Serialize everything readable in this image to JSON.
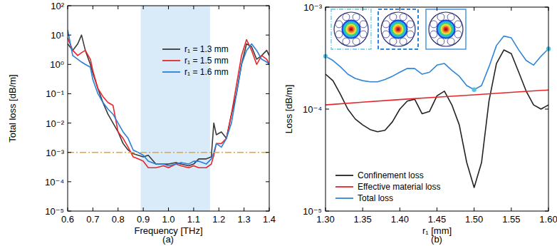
{
  "chart_data": [
    {
      "type": "line",
      "caption": "(a)",
      "x_label": "Frequency [THz]",
      "y_label": "Total loss [dB/m]",
      "log": "y",
      "grid": false,
      "legend": "upper right",
      "xlim": [
        0.6,
        1.4
      ],
      "ylim": [
        1e-05,
        100
      ],
      "xticks": [
        0.6,
        0.7,
        0.8,
        0.9,
        {
          "value": 1,
          "label": "1.0"
        },
        1.1,
        1.2,
        1.3,
        1.4
      ],
      "yticks": [
        {
          "value": 1e-05,
          "label": "10⁻⁵"
        },
        {
          "value": 0.0001,
          "label": "10⁻⁴"
        },
        {
          "value": 0.001,
          "label": "10⁻³"
        },
        {
          "value": 0.01,
          "label": "10⁻²"
        },
        {
          "value": 0.1,
          "label": "10⁻¹"
        },
        {
          "value": 1,
          "label": "10⁰"
        },
        {
          "value": 10,
          "label": "10¹"
        },
        {
          "value": 100,
          "label": "10²"
        }
      ],
      "shaded_region": [
        0.89,
        1.165
      ],
      "reference_line": 0.001,
      "x": [
        0.6,
        0.62,
        0.64,
        0.655,
        0.67,
        0.69,
        0.7,
        0.72,
        0.74,
        0.76,
        0.78,
        0.8,
        0.82,
        0.84,
        0.86,
        0.88,
        0.9,
        0.92,
        0.95,
        0.98,
        1.0,
        1.03,
        1.05,
        1.08,
        1.1,
        1.12,
        1.15,
        1.17,
        1.18,
        1.19,
        1.21,
        1.23,
        1.25,
        1.27,
        1.29,
        1.31,
        1.33,
        1.35,
        1.37,
        1.39,
        1.4
      ],
      "series": [
        {
          "name": "r₁ = 1.3 mm",
          "color": "#3a3a3a",
          "values": [
            5,
            3,
            5,
            10,
            3,
            1,
            0.5,
            0.15,
            0.05,
            0.02,
            0.01,
            0.005,
            0.002,
            0.0012,
            0.0009,
            0.0008,
            0.0007,
            0.0008,
            0.0004,
            0.0004,
            0.0004,
            0.00045,
            0.0004,
            0.00035,
            0.0004,
            0.0006,
            0.0006,
            0.0007,
            0.01,
            0.004,
            0.005,
            0.003,
            0.02,
            0.1,
            1,
            5,
            4,
            1.5,
            2,
            3,
            2
          ]
        },
        {
          "name": "r₁ = 1.5 mm",
          "color": "#e8262c",
          "values": [
            8,
            3,
            2,
            2.5,
            3,
            1.5,
            0.6,
            0.15,
            0.08,
            0.05,
            0.04,
            0.005,
            0.003,
            0.0015,
            0.0007,
            0.0006,
            0.0005,
            0.0003,
            0.0003,
            0.00035,
            0.0003,
            0.0004,
            0.00035,
            0.0003,
            0.00035,
            0.0003,
            0.0003,
            0.0004,
            0.0008,
            0.002,
            0.002,
            0.003,
            0.02,
            0.2,
            2,
            7,
            3,
            1,
            2,
            1.5,
            1
          ]
        },
        {
          "name": "r₁ = 1.6 mm",
          "color": "#2b7fd6",
          "values": [
            15,
            2,
            1.5,
            1.2,
            1,
            0.8,
            0.3,
            0.1,
            0.05,
            0.03,
            0.02,
            0.01,
            0.005,
            0.003,
            0.0012,
            0.001,
            0.0008,
            0.0005,
            0.0004,
            0.0004,
            0.00035,
            0.0004,
            0.00045,
            0.0004,
            0.0005,
            0.0005,
            0.0004,
            0.0006,
            0.001,
            0.002,
            0.0015,
            0.003,
            0.01,
            0.1,
            1,
            3,
            5,
            3,
            1.5,
            1.2,
            1
          ]
        }
      ]
    },
    {
      "type": "line",
      "caption": "(b)",
      "x_label": "r₁ [mm]",
      "y_label": "Loss [dB/m]",
      "log": "y",
      "grid": false,
      "legend": "lower left",
      "xlim": [
        1.3,
        1.6
      ],
      "ylim": [
        1e-05,
        0.001
      ],
      "xticks": [
        {
          "value": 1.3,
          "label": "1.30"
        },
        1.35,
        {
          "value": 1.4,
          "label": "1.40"
        },
        1.45,
        {
          "value": 1.5,
          "label": "1.50"
        },
        1.55,
        {
          "value": 1.6,
          "label": "1.60"
        }
      ],
      "yticks": [
        {
          "value": 1e-05,
          "label": "10⁻⁵"
        },
        {
          "value": 0.0001,
          "label": "10⁻⁴"
        },
        {
          "value": 0.001,
          "label": "10⁻³"
        }
      ],
      "series": [
        {
          "name": "Confinement loss",
          "color": "#222222",
          "x": [
            1.3,
            1.31,
            1.32,
            1.33,
            1.34,
            1.35,
            1.36,
            1.37,
            1.38,
            1.39,
            1.4,
            1.41,
            1.42,
            1.43,
            1.44,
            1.45,
            1.46,
            1.47,
            1.48,
            1.49,
            1.5,
            1.51,
            1.52,
            1.53,
            1.54,
            1.55,
            1.56,
            1.57,
            1.58,
            1.59,
            1.6
          ],
          "values": [
            0.00022,
            0.00019,
            0.00014,
            0.0001,
            8e-05,
            7e-05,
            6.3e-05,
            6e-05,
            6.2e-05,
            7.5e-05,
            0.0001,
            0.00012,
            0.000125,
            9e-05,
            9.5e-05,
            0.000135,
            0.00015,
            0.00011,
            7e-05,
            3e-05,
            1.7e-05,
            3e-05,
            0.00012,
            0.00028,
            0.00038,
            0.00035,
            0.00023,
            0.00015,
            0.00011,
            0.0001,
            0.00011
          ]
        },
        {
          "name": "Effective material loss",
          "color": "#e4262c",
          "x": [
            1.3,
            1.35,
            1.4,
            1.45,
            1.5,
            1.55,
            1.6
          ],
          "values": [
            0.00011,
            0.000117,
            0.000124,
            0.000131,
            0.000138,
            0.000146,
            0.000154
          ]
        },
        {
          "name": "Total loss",
          "color": "#2f86d6",
          "x": [
            1.3,
            1.31,
            1.32,
            1.33,
            1.34,
            1.35,
            1.36,
            1.37,
            1.38,
            1.39,
            1.4,
            1.41,
            1.42,
            1.43,
            1.44,
            1.45,
            1.46,
            1.47,
            1.48,
            1.49,
            1.5,
            1.51,
            1.52,
            1.53,
            1.54,
            1.55,
            1.56,
            1.57,
            1.58,
            1.59,
            1.6
          ],
          "values": [
            0.00033,
            0.0003,
            0.00026,
            0.00022,
            0.0002,
            0.00019,
            0.000185,
            0.000185,
            0.000195,
            0.00021,
            0.00023,
            0.00025,
            0.00025,
            0.00022,
            0.00023,
            0.00027,
            0.00028,
            0.00024,
            0.00021,
            0.00017,
            0.000155,
            0.00017,
            0.00026,
            0.00042,
            0.00052,
            0.0005,
            0.00038,
            0.0003,
            0.00027,
            0.00033,
            0.00039
          ],
          "highlight_x": [
            1.3,
            1.5,
            1.6
          ]
        }
      ]
    }
  ]
}
